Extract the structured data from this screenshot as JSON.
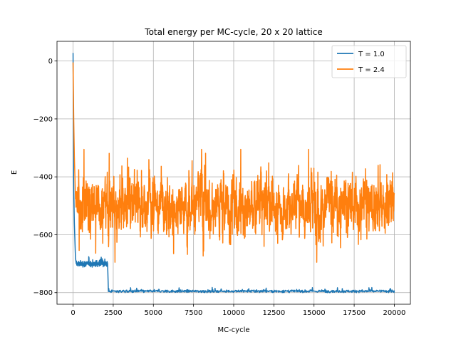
{
  "chart_data": {
    "type": "line",
    "title": "Total energy per MC-cycle, 20 x 20 lattice",
    "xlabel": "MC-cycle",
    "ylabel": "E",
    "xlim": [
      -1000,
      21000
    ],
    "ylim": [
      -840,
      68
    ],
    "grid": true,
    "legend_position": "top-right",
    "xticks": [
      0,
      2500,
      5000,
      7500,
      10000,
      12500,
      15000,
      17500,
      20000
    ],
    "xtick_labels": [
      "0",
      "2500",
      "5000",
      "7500",
      "10000",
      "12500",
      "15000",
      "17500",
      "20000"
    ],
    "yticks": [
      0,
      -200,
      -400,
      -600,
      -800
    ],
    "ytick_labels": [
      "0",
      "−200",
      "−400",
      "−600",
      "−800"
    ],
    "series": [
      {
        "name": "T = 1.0",
        "color": "#1f77b4",
        "key_points": [
          {
            "x": 0,
            "y": 28
          },
          {
            "x": 30,
            "y": -400
          },
          {
            "x": 80,
            "y": -560
          },
          {
            "x": 150,
            "y": -680
          },
          {
            "x": 200,
            "y": -700
          },
          {
            "x": 2150,
            "y": -700
          },
          {
            "x": 2200,
            "y": -795
          },
          {
            "x": 20000,
            "y": -795
          }
        ],
        "plateaus": [
          {
            "x_start": 200,
            "x_end": 2150,
            "mean": -700,
            "min": -712,
            "max": -672
          },
          {
            "x_start": 2200,
            "x_end": 20000,
            "mean": -795,
            "min": -800,
            "max": -780
          }
        ]
      },
      {
        "name": "T = 2.4",
        "color": "#ff7f0e",
        "key_points": [
          {
            "x": 0,
            "y": -5
          },
          {
            "x": 40,
            "y": -200
          },
          {
            "x": 80,
            "y": -330
          },
          {
            "x": 150,
            "y": -470
          }
        ],
        "stationary": {
          "x_start": 150,
          "x_end": 20000,
          "mean": -495,
          "min": -695,
          "max": -305
        }
      }
    ]
  }
}
